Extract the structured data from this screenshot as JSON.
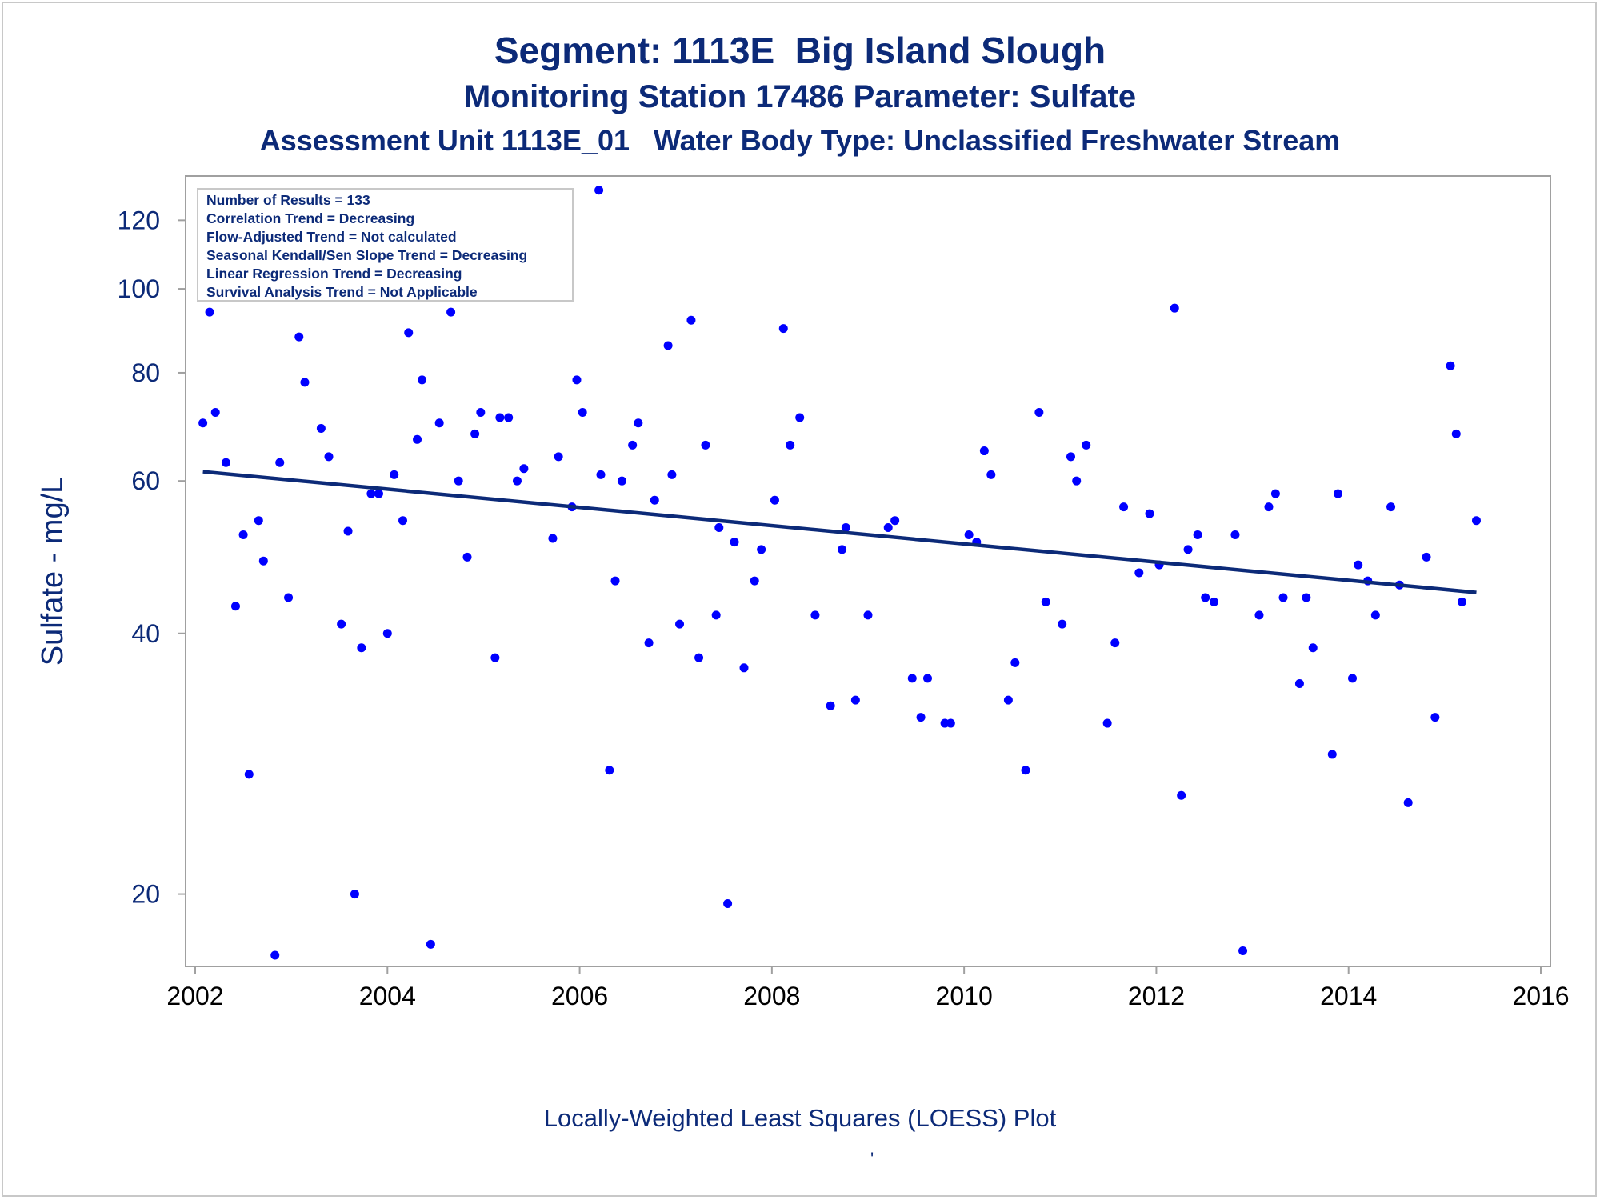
{
  "titles": {
    "line1": "Segment: 1113E  Big Island Slough",
    "line2": "Monitoring Station 17486 Parameter: Sulfate",
    "line3": "Assessment Unit 1113E_01   Water Body Type: Unclassified Freshwater Stream"
  },
  "footnote": "Locally-Weighted Least Squares (LOESS) Plot",
  "footnote_mark": "'",
  "stats_box": [
    "Number of Results = 133",
    "Correlation Trend = Decreasing",
    "Flow-Adjusted Trend = Not calculated",
    "Seasonal Kendall/Sen Slope Trend = Decreasing",
    "Linear Regression Trend = Decreasing",
    "Survival Analysis Trend = Not Applicable"
  ],
  "colors": {
    "text": "#0c2a78",
    "points": "#0000ff",
    "trend": "#0c2a78",
    "frame": "#a0a0a0"
  },
  "chart_data": {
    "type": "scatter",
    "ylabel": "Sulfate - mg/L",
    "xlabel": "",
    "y_scale": "log",
    "x_ticks": [
      2002,
      2004,
      2006,
      2008,
      2010,
      2012,
      2014,
      2016
    ],
    "y_ticks": [
      20,
      40,
      60,
      80,
      100,
      120
    ],
    "xlim": [
      2001.9,
      2016.1
    ],
    "ylim": [
      16.5,
      135
    ],
    "grid": false,
    "legend": "top-left",
    "series": [
      {
        "points": [
          [
            2002.08,
            70
          ],
          [
            2002.15,
            94
          ],
          [
            2002.21,
            72
          ],
          [
            2002.32,
            63
          ],
          [
            2002.42,
            43
          ],
          [
            2002.5,
            52
          ],
          [
            2002.56,
            27.5
          ],
          [
            2002.66,
            54
          ],
          [
            2002.71,
            48.5
          ],
          [
            2002.83,
            17
          ],
          [
            2002.88,
            63
          ],
          [
            2002.97,
            44
          ],
          [
            2003.08,
            88
          ],
          [
            2003.14,
            78
          ],
          [
            2003.31,
            69
          ],
          [
            2003.39,
            64
          ],
          [
            2003.52,
            41
          ],
          [
            2003.59,
            52.5
          ],
          [
            2003.66,
            20
          ],
          [
            2003.73,
            38.5
          ],
          [
            2003.83,
            58
          ],
          [
            2003.91,
            58
          ],
          [
            2004.0,
            40
          ],
          [
            2004.07,
            61
          ],
          [
            2004.16,
            54
          ],
          [
            2004.22,
            89
          ],
          [
            2004.31,
            67
          ],
          [
            2004.36,
            78.5
          ],
          [
            2004.45,
            17.5
          ],
          [
            2004.54,
            70
          ],
          [
            2004.66,
            94
          ],
          [
            2004.74,
            60
          ],
          [
            2004.83,
            49
          ],
          [
            2004.91,
            68
          ],
          [
            2004.97,
            72
          ],
          [
            2005.12,
            37.5
          ],
          [
            2005.17,
            71
          ],
          [
            2005.26,
            71
          ],
          [
            2005.35,
            60
          ],
          [
            2005.42,
            62
          ],
          [
            2005.72,
            51.5
          ],
          [
            2005.78,
            64
          ],
          [
            2005.92,
            56
          ],
          [
            2005.97,
            78.5
          ],
          [
            2006.03,
            72
          ],
          [
            2006.2,
            130
          ],
          [
            2006.22,
            61
          ],
          [
            2006.31,
            27.8
          ],
          [
            2006.37,
            46
          ],
          [
            2006.44,
            60
          ],
          [
            2006.55,
            66
          ],
          [
            2006.61,
            70
          ],
          [
            2006.72,
            39
          ],
          [
            2006.78,
            57
          ],
          [
            2006.92,
            86
          ],
          [
            2006.96,
            61
          ],
          [
            2007.04,
            41
          ],
          [
            2007.16,
            92
          ],
          [
            2007.24,
            37.5
          ],
          [
            2007.31,
            66
          ],
          [
            2007.42,
            42
          ],
          [
            2007.45,
            53
          ],
          [
            2007.54,
            19.5
          ],
          [
            2007.61,
            51
          ],
          [
            2007.71,
            36.5
          ],
          [
            2007.82,
            46
          ],
          [
            2007.89,
            50
          ],
          [
            2008.03,
            57
          ],
          [
            2008.12,
            90
          ],
          [
            2008.19,
            66
          ],
          [
            2008.29,
            71
          ],
          [
            2008.45,
            42
          ],
          [
            2008.61,
            33
          ],
          [
            2008.73,
            50
          ],
          [
            2008.77,
            53
          ],
          [
            2008.87,
            33.5
          ],
          [
            2009.0,
            42
          ],
          [
            2009.21,
            53
          ],
          [
            2009.28,
            54
          ],
          [
            2009.46,
            35.5
          ],
          [
            2009.55,
            32
          ],
          [
            2009.62,
            35.5
          ],
          [
            2009.8,
            31.5
          ],
          [
            2009.86,
            31.5
          ],
          [
            2010.05,
            52
          ],
          [
            2010.13,
            51
          ],
          [
            2010.21,
            65
          ],
          [
            2010.28,
            61
          ],
          [
            2010.46,
            33.5
          ],
          [
            2010.53,
            37
          ],
          [
            2010.64,
            27.8
          ],
          [
            2010.78,
            72
          ],
          [
            2010.85,
            43.5
          ],
          [
            2011.02,
            41
          ],
          [
            2011.11,
            64
          ],
          [
            2011.17,
            60
          ],
          [
            2011.27,
            66
          ],
          [
            2011.49,
            31.5
          ],
          [
            2011.57,
            39
          ],
          [
            2011.66,
            56
          ],
          [
            2011.82,
            47
          ],
          [
            2011.93,
            55
          ],
          [
            2012.03,
            48
          ],
          [
            2012.19,
            95
          ],
          [
            2012.26,
            26
          ],
          [
            2012.33,
            50
          ],
          [
            2012.43,
            52
          ],
          [
            2012.51,
            44
          ],
          [
            2012.6,
            43.5
          ],
          [
            2012.82,
            52
          ],
          [
            2012.9,
            17.2
          ],
          [
            2013.07,
            42
          ],
          [
            2013.17,
            56
          ],
          [
            2013.24,
            58
          ],
          [
            2013.32,
            44
          ],
          [
            2013.49,
            35
          ],
          [
            2013.56,
            44
          ],
          [
            2013.63,
            38.5
          ],
          [
            2013.83,
            29
          ],
          [
            2013.89,
            58
          ],
          [
            2014.04,
            35.5
          ],
          [
            2014.1,
            48
          ],
          [
            2014.2,
            46
          ],
          [
            2014.28,
            42
          ],
          [
            2014.44,
            56
          ],
          [
            2014.53,
            45.5
          ],
          [
            2014.62,
            25.5
          ],
          [
            2014.81,
            49
          ],
          [
            2014.9,
            32
          ],
          [
            2015.06,
            81.5
          ],
          [
            2015.12,
            68
          ],
          [
            2015.18,
            43.5
          ],
          [
            2015.33,
            54
          ]
        ]
      },
      {
        "type": "line",
        "points": [
          [
            2002.08,
            61.5
          ],
          [
            2015.33,
            44.6
          ]
        ]
      }
    ]
  }
}
